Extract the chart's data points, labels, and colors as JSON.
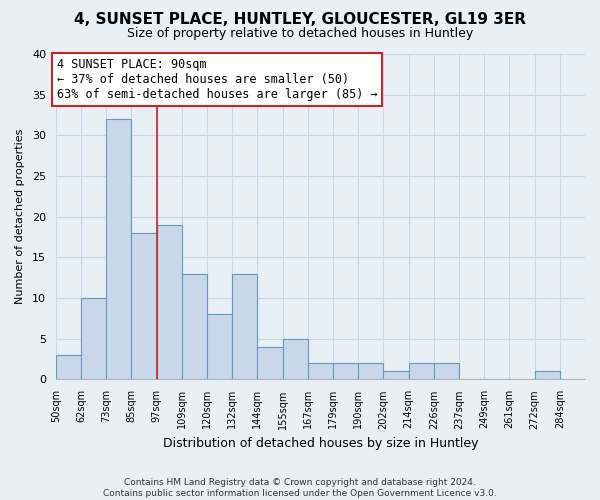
{
  "title": "4, SUNSET PLACE, HUNTLEY, GLOUCESTER, GL19 3ER",
  "subtitle": "Size of property relative to detached houses in Huntley",
  "xlabel": "Distribution of detached houses by size in Huntley",
  "ylabel": "Number of detached properties",
  "footer_line1": "Contains HM Land Registry data © Crown copyright and database right 2024.",
  "footer_line2": "Contains public sector information licensed under the Open Government Licence v3.0.",
  "bin_labels": [
    "50sqm",
    "62sqm",
    "73sqm",
    "85sqm",
    "97sqm",
    "109sqm",
    "120sqm",
    "132sqm",
    "144sqm",
    "155sqm",
    "167sqm",
    "179sqm",
    "190sqm",
    "202sqm",
    "214sqm",
    "226sqm",
    "237sqm",
    "249sqm",
    "261sqm",
    "272sqm",
    "284sqm"
  ],
  "bar_values": [
    3,
    10,
    32,
    18,
    19,
    13,
    8,
    13,
    4,
    5,
    2,
    2,
    2,
    1,
    2,
    2,
    0,
    0,
    0,
    1,
    0
  ],
  "bar_color": "#c8d8ea",
  "bar_edge_color": "#6699bb",
  "ylim": [
    0,
    40
  ],
  "yticks": [
    0,
    5,
    10,
    15,
    20,
    25,
    30,
    35,
    40
  ],
  "red_line_bin_index": 3,
  "annotation_title": "4 SUNSET PLACE: 90sqm",
  "annotation_line1": "← 37% of detached houses are smaller (50)",
  "annotation_line2": "63% of semi-detached houses are larger (85) →",
  "annotation_box_facecolor": "#ffffff",
  "annotation_border_color": "#cc2222",
  "red_line_color": "#cc2222",
  "grid_color": "#c8d8e8",
  "background_color": "#e8eff5",
  "title_fontsize": 11,
  "subtitle_fontsize": 9,
  "annotation_fontsize": 8.5
}
